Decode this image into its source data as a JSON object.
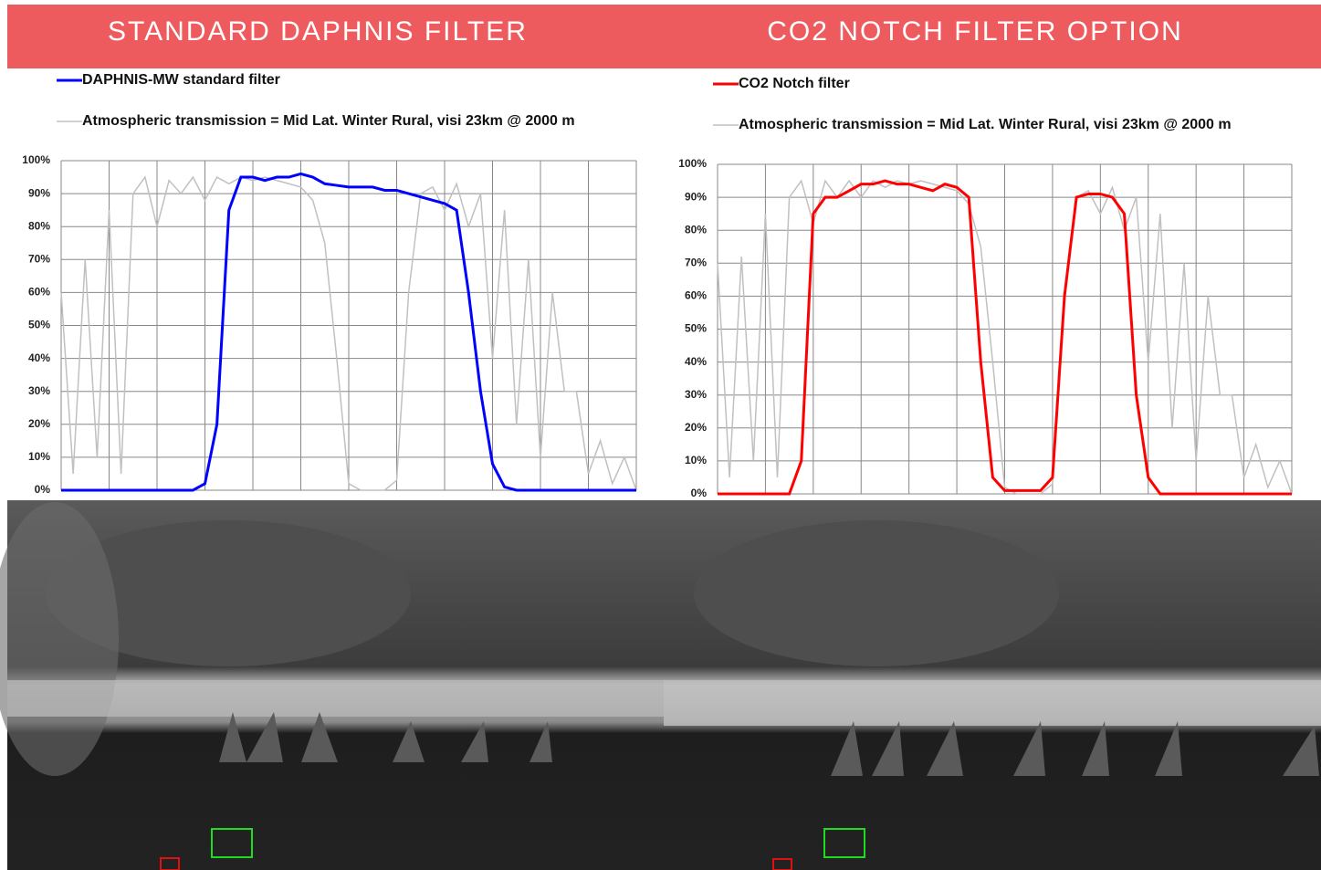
{
  "chart_data": [
    {
      "type": "line",
      "title": "STANDARD DAPHNIS FILTER",
      "categories": [
        null,
        null,
        null,
        null,
        null,
        null,
        null,
        null,
        null,
        null,
        null,
        null,
        null,
        null,
        null,
        null,
        null,
        null,
        null,
        null,
        null,
        null,
        null,
        null,
        null,
        null,
        null,
        null,
        null,
        null,
        null,
        null,
        null,
        null,
        null,
        null,
        null,
        null,
        null,
        null,
        null,
        null,
        null,
        null,
        null,
        null,
        null,
        null,
        null
      ],
      "series": [
        {
          "name": "DAPHNIS-MW standard filter",
          "color": "#0000ff",
          "values": [
            0,
            0,
            0,
            0,
            0,
            0,
            0,
            0,
            0,
            0,
            0,
            0,
            2,
            20,
            85,
            95,
            95,
            94,
            95,
            95,
            96,
            95,
            93,
            92.5,
            92,
            92,
            92,
            91,
            91,
            90,
            89,
            88,
            87,
            85,
            60,
            30,
            8,
            1,
            0,
            0,
            0,
            0,
            0,
            0,
            0,
            0,
            0,
            0,
            0
          ]
        },
        {
          "name": "Atmospheric transmission = Mid Lat. Winter Rural, visi 23km @ 2000 m",
          "color": "#c0c0c0",
          "values": [
            60,
            5,
            70,
            10,
            85,
            5,
            90,
            95,
            80,
            94,
            90,
            95,
            88,
            95,
            93,
            95,
            94,
            95,
            94,
            93,
            92,
            88,
            75,
            40,
            2,
            0,
            0,
            0,
            3,
            60,
            90,
            92,
            85,
            93,
            80,
            90,
            40,
            85,
            20,
            70,
            10,
            60,
            30,
            30,
            5,
            15,
            2,
            10,
            0
          ]
        }
      ],
      "ylim": [
        0,
        100
      ],
      "yticks": [
        {
          "value": 0,
          "label": "0%"
        },
        {
          "value": 10,
          "label": "10%"
        },
        {
          "value": 20,
          "label": "20%"
        },
        {
          "value": 30,
          "label": "30%"
        },
        {
          "value": 40,
          "label": "40%"
        },
        {
          "value": 50,
          "label": "50%"
        },
        {
          "value": 60,
          "label": "60%"
        },
        {
          "value": 70,
          "label": "70%"
        },
        {
          "value": 80,
          "label": "80%"
        },
        {
          "value": 90,
          "label": "90%"
        },
        {
          "value": 100,
          "label": "100%"
        }
      ],
      "grid": true
    },
    {
      "type": "line",
      "title": "CO2 NOTCH FILTER OPTION",
      "categories": [
        null,
        null,
        null,
        null,
        null,
        null,
        null,
        null,
        null,
        null,
        null,
        null,
        null,
        null,
        null,
        null,
        null,
        null,
        null,
        null,
        null,
        null,
        null,
        null,
        null,
        null,
        null,
        null,
        null,
        null,
        null,
        null,
        null,
        null,
        null,
        null,
        null,
        null,
        null,
        null,
        null,
        null,
        null,
        null,
        null,
        null,
        null,
        null,
        null
      ],
      "series": [
        {
          "name": "CO2 Notch filter",
          "color": "#ff0000",
          "values": [
            0,
            0,
            0,
            0,
            0,
            0,
            0,
            10,
            85,
            90,
            90,
            92,
            94,
            94,
            95,
            94,
            94,
            93,
            92,
            94,
            93,
            90,
            40,
            5,
            1,
            1,
            1,
            1,
            5,
            60,
            90,
            91,
            91,
            90,
            85,
            30,
            5,
            0,
            0,
            0,
            0,
            0,
            0,
            0,
            0,
            0,
            0,
            0,
            0
          ]
        },
        {
          "name": "Atmospheric transmission = Mid Lat. Winter Rural, visi 23km @ 2000 m",
          "color": "#c0c0c0",
          "values": [
            70,
            5,
            72,
            10,
            85,
            5,
            90,
            95,
            82,
            95,
            90,
            95,
            90,
            95,
            93,
            95,
            94,
            95,
            94,
            93,
            92,
            88,
            75,
            40,
            2,
            0,
            0,
            0,
            3,
            60,
            90,
            92,
            85,
            93,
            80,
            90,
            40,
            85,
            20,
            70,
            10,
            60,
            30,
            30,
            5,
            15,
            2,
            10,
            0
          ]
        }
      ],
      "ylim": [
        0,
        100
      ],
      "yticks": [
        {
          "value": 0,
          "label": "0%"
        },
        {
          "value": 10,
          "label": "10%"
        },
        {
          "value": 20,
          "label": "20%"
        },
        {
          "value": 30,
          "label": "30%"
        },
        {
          "value": 40,
          "label": "40%"
        },
        {
          "value": 50,
          "label": "50%"
        },
        {
          "value": 60,
          "label": "60%"
        },
        {
          "value": 70,
          "label": "70%"
        },
        {
          "value": 80,
          "label": "80%"
        },
        {
          "value": 90,
          "label": "90%"
        },
        {
          "value": 100,
          "label": "100%"
        }
      ],
      "grid": true
    }
  ]
}
